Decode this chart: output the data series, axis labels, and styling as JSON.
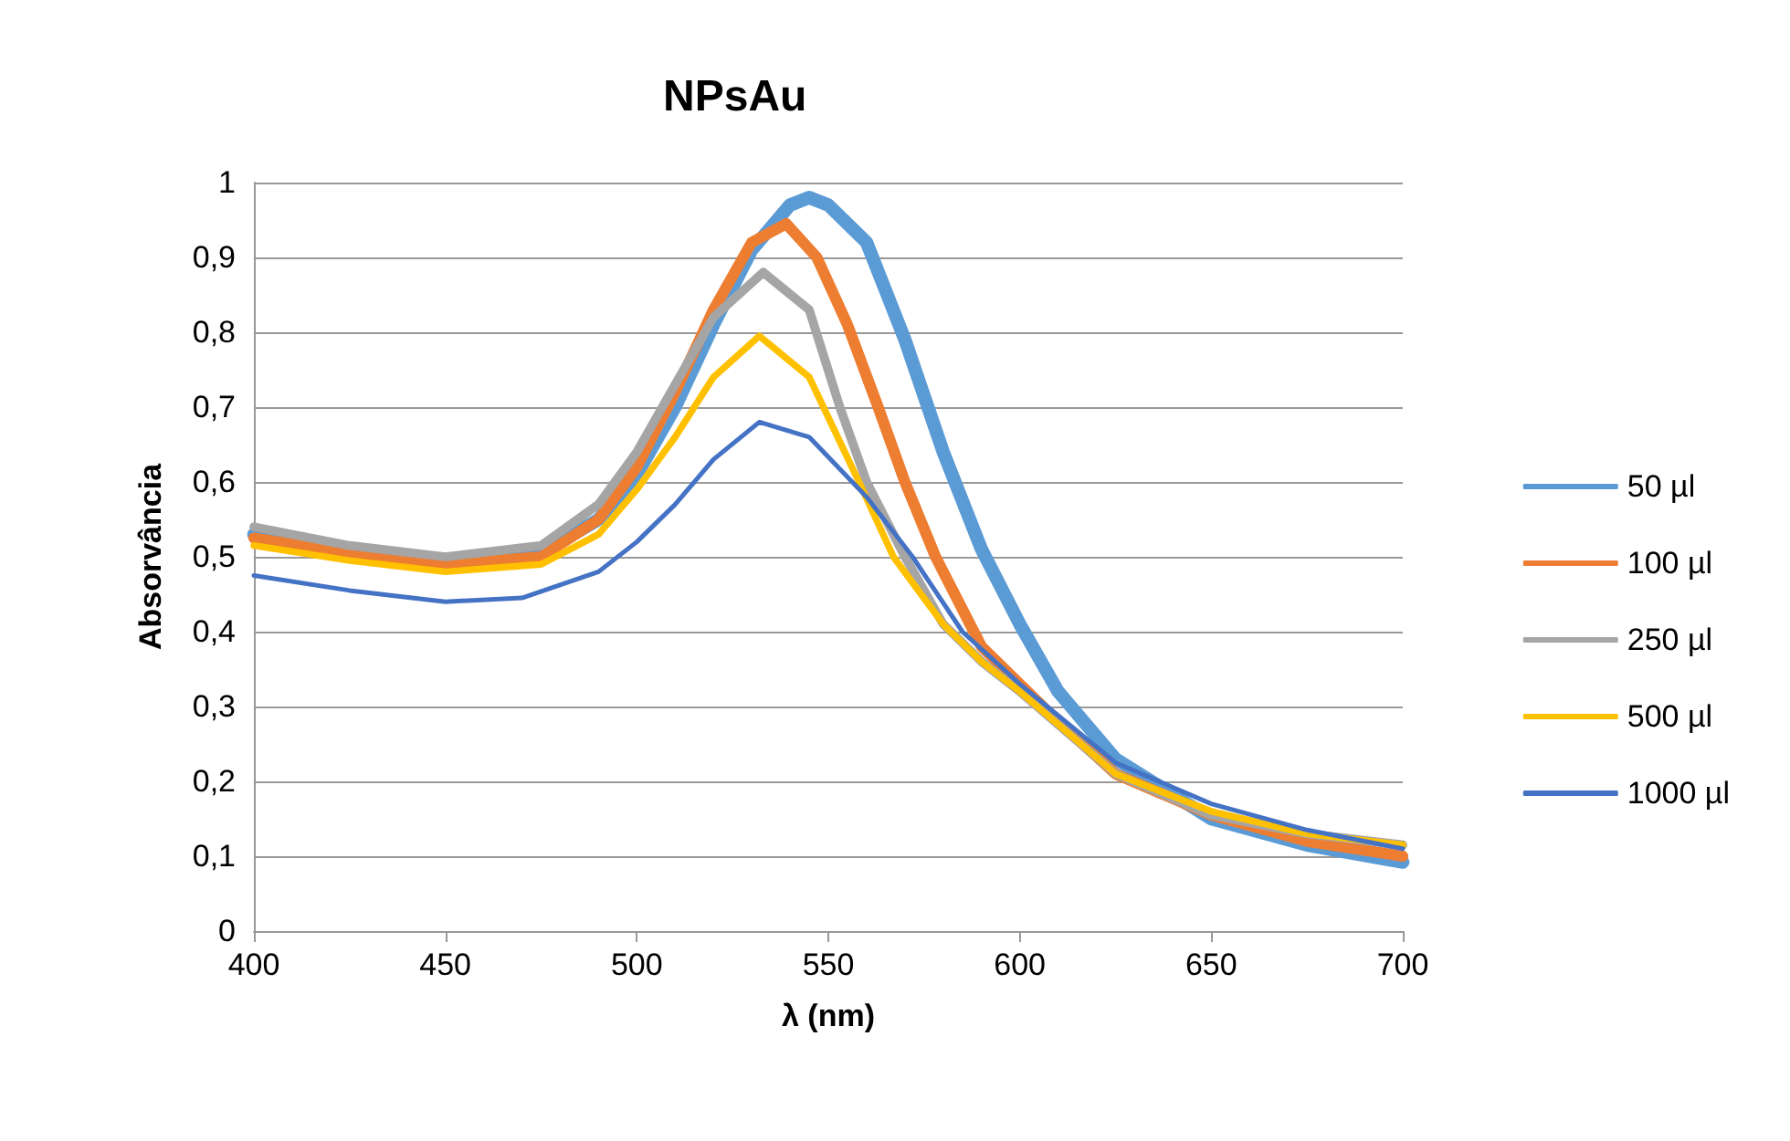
{
  "chart_data": {
    "type": "line",
    "title": "NPsAu",
    "xlabel": "λ (nm)",
    "ylabel": "Absorvância",
    "xlim": [
      400,
      700
    ],
    "xticks": [
      400,
      450,
      500,
      550,
      600,
      650,
      700
    ],
    "ylim": [
      0,
      1
    ],
    "yticks": [
      0,
      {
        "value": 0.1,
        "label": "0,1"
      },
      {
        "value": 0.2,
        "label": "0,2"
      },
      {
        "value": 0.3,
        "label": "0,3"
      },
      {
        "value": 0.4,
        "label": "0,4"
      },
      {
        "value": 0.5,
        "label": "0,5"
      },
      {
        "value": 0.6,
        "label": "0,6"
      },
      {
        "value": 0.7,
        "label": "0,7"
      },
      {
        "value": 0.8,
        "label": "0,8"
      },
      {
        "value": 0.9,
        "label": "0,9"
      },
      1
    ],
    "grid": "y",
    "legend": "right",
    "marker": "none",
    "line_style": "solid",
    "series": [
      {
        "name": "50 µl",
        "color": "#5b9bd5",
        "x": [
          400,
          425,
          450,
          475,
          490,
          500,
          510,
          520,
          530,
          540,
          545,
          550,
          560,
          570,
          580,
          590,
          600,
          610,
          625,
          650,
          675,
          700
        ],
        "values": [
          0.53,
          0.51,
          0.495,
          0.505,
          0.55,
          0.61,
          0.7,
          0.81,
          0.91,
          0.97,
          0.98,
          0.97,
          0.92,
          0.79,
          0.64,
          0.51,
          0.41,
          0.32,
          0.23,
          0.15,
          0.115,
          0.092
        ]
      },
      {
        "name": "100 µl",
        "color": "#ed7d31",
        "x": [
          400,
          425,
          450,
          475,
          490,
          500,
          510,
          520,
          530,
          539,
          547,
          555,
          563,
          570,
          578,
          590,
          600,
          610,
          625,
          650,
          675,
          700
        ],
        "values": [
          0.525,
          0.505,
          0.49,
          0.5,
          0.55,
          0.62,
          0.72,
          0.83,
          0.92,
          0.945,
          0.9,
          0.81,
          0.7,
          0.6,
          0.5,
          0.38,
          0.33,
          0.28,
          0.21,
          0.155,
          0.12,
          0.1
        ]
      },
      {
        "name": "250 µl",
        "color": "#a5a5a5",
        "x": [
          400,
          425,
          450,
          475,
          490,
          500,
          510,
          520,
          533,
          545,
          553,
          560,
          570,
          580,
          590,
          600,
          625,
          650,
          675,
          700
        ],
        "values": [
          0.54,
          0.515,
          0.5,
          0.515,
          0.57,
          0.64,
          0.73,
          0.82,
          0.88,
          0.83,
          0.7,
          0.6,
          0.5,
          0.41,
          0.36,
          0.32,
          0.21,
          0.155,
          0.13,
          0.115
        ]
      },
      {
        "name": "500 µl",
        "color": "#ffc000",
        "x": [
          400,
          425,
          450,
          475,
          490,
          500,
          510,
          520,
          532,
          545,
          558,
          567,
          580,
          590,
          600,
          625,
          650,
          675,
          700
        ],
        "values": [
          0.515,
          0.495,
          0.48,
          0.49,
          0.53,
          0.59,
          0.66,
          0.74,
          0.795,
          0.74,
          0.6,
          0.5,
          0.41,
          0.36,
          0.32,
          0.21,
          0.16,
          0.13,
          0.115
        ]
      },
      {
        "name": "1000 µl",
        "color": "#4472c4",
        "x": [
          400,
          425,
          450,
          470,
          490,
          500,
          510,
          520,
          532,
          545,
          560,
          572,
          585,
          600,
          625,
          650,
          675,
          700
        ],
        "values": [
          0.475,
          0.455,
          0.44,
          0.445,
          0.48,
          0.52,
          0.57,
          0.63,
          0.68,
          0.66,
          0.58,
          0.5,
          0.4,
          0.33,
          0.225,
          0.17,
          0.135,
          0.11
        ]
      }
    ]
  }
}
